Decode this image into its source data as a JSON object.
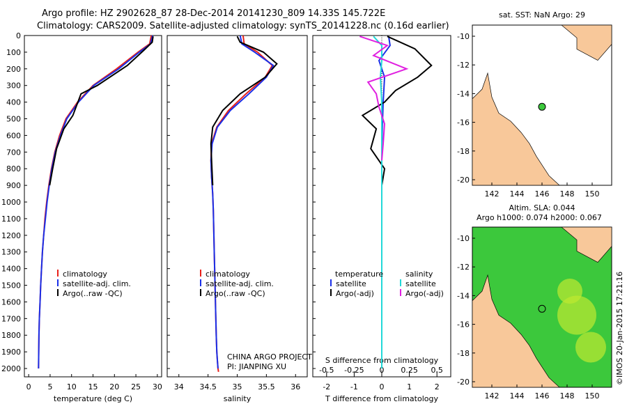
{
  "title_line1": "Argo profile: HZ 2902628_87 28-Dec-2014 20141230_809 14.33S 145.722E",
  "title_line2": "Climatology: CARS2009. Satellite-adjusted climatology: synTS_20141228.nc (0.16d earlier)",
  "colors": {
    "climatology": "#e8201a",
    "satellite": "#1a2fe8",
    "argo": "#000000",
    "satellite_s": "#22d8d8",
    "argo_s": "#e020e0",
    "land": "#f8c89a",
    "sea_green": "#3cc83c"
  },
  "chart_data": [
    {
      "type": "line",
      "id": "temperature",
      "xlabel": "temperature (deg C)",
      "ylabel": "",
      "xlim": [
        -1,
        31
      ],
      "ylim": [
        2050,
        0
      ],
      "xticks": [
        "0",
        "5",
        "10",
        "15",
        "20",
        "25",
        "30"
      ],
      "yticks": [
        "0",
        "100",
        "200",
        "300",
        "400",
        "500",
        "600",
        "700",
        "800",
        "900",
        "1000",
        "1100",
        "1200",
        "1300",
        "1400",
        "1500",
        "1600",
        "1700",
        "1800",
        "1900",
        "2000"
      ],
      "legend": [
        "climatology",
        "satellite-adj. clim.",
        "Argo(..raw -QC)"
      ],
      "series": [
        {
          "name": "climatology",
          "color": "#e8201a",
          "x": [
            28.6,
            28.2,
            25.5,
            20.5,
            15.0,
            11.4,
            8.7,
            7.2,
            6.1,
            5.3,
            4.7,
            4.2,
            3.8,
            3.5,
            3.2,
            3.0,
            2.8,
            2.65,
            2.5,
            2.4,
            2.35,
            2.3
          ],
          "y": [
            0,
            50,
            100,
            200,
            300,
            400,
            500,
            600,
            700,
            800,
            900,
            1000,
            1100,
            1200,
            1300,
            1400,
            1500,
            1600,
            1700,
            1800,
            1900,
            2000
          ]
        },
        {
          "name": "satellite-adj. clim.",
          "color": "#1a2fe8",
          "x": [
            28.9,
            28.4,
            25.8,
            21.0,
            15.2,
            11.6,
            8.9,
            7.4,
            6.2,
            5.4,
            4.8,
            4.3,
            3.9,
            3.5,
            3.2,
            3.0,
            2.8,
            2.65,
            2.5,
            2.4,
            2.35,
            2.3
          ],
          "y": [
            0,
            50,
            100,
            200,
            300,
            400,
            500,
            600,
            700,
            800,
            900,
            1000,
            1100,
            1200,
            1300,
            1400,
            1500,
            1600,
            1700,
            1800,
            1900,
            2000
          ]
        },
        {
          "name": "Argo(..raw -QC)",
          "color": "#000000",
          "x": [
            29.0,
            28.8,
            26.8,
            23.0,
            16.0,
            12.2,
            10.3,
            8.2,
            6.5,
            5.6,
            4.9
          ],
          "y": [
            5,
            40,
            90,
            180,
            300,
            350,
            480,
            560,
            680,
            800,
            900
          ]
        }
      ]
    },
    {
      "type": "line",
      "id": "salinity",
      "xlabel": "salinity",
      "xlim": [
        33.8,
        36.2
      ],
      "ylim": [
        2050,
        0
      ],
      "xticks": [
        "34",
        "34.5",
        "35",
        "35.5",
        "36"
      ],
      "legend": [
        "climatology",
        "satellite-adj. clim.",
        "Argo(..raw -QC)"
      ],
      "series": [
        {
          "name": "climatology",
          "color": "#e8201a",
          "x": [
            35.1,
            35.12,
            35.35,
            35.6,
            35.48,
            35.15,
            34.85,
            34.65,
            34.56,
            34.55,
            34.56,
            34.58,
            34.59,
            34.6,
            34.61,
            34.62,
            34.63,
            34.64,
            34.65,
            34.66,
            34.67,
            34.68
          ],
          "y": [
            0,
            50,
            100,
            180,
            250,
            350,
            450,
            550,
            650,
            750,
            850,
            950,
            1050,
            1200,
            1350,
            1500,
            1650,
            1800,
            1900,
            1950,
            2000,
            2020
          ]
        },
        {
          "name": "satellite-adj. clim.",
          "color": "#1a2fe8",
          "x": [
            35.05,
            35.08,
            35.3,
            35.62,
            35.5,
            35.2,
            34.88,
            34.66,
            34.57,
            34.55,
            34.56,
            34.58,
            34.59,
            34.6,
            34.61,
            34.62,
            34.63,
            34.64,
            34.65,
            34.66,
            34.67
          ],
          "y": [
            0,
            50,
            100,
            180,
            250,
            350,
            450,
            550,
            650,
            750,
            850,
            950,
            1050,
            1200,
            1350,
            1500,
            1650,
            1800,
            1900,
            1950,
            2000
          ]
        },
        {
          "name": "Argo(..raw -QC)",
          "color": "#000000",
          "x": [
            35.0,
            35.05,
            35.45,
            35.68,
            35.48,
            35.05,
            34.75,
            34.58,
            34.55,
            34.56,
            34.58
          ],
          "y": [
            5,
            40,
            100,
            170,
            250,
            350,
            450,
            550,
            650,
            750,
            900
          ]
        }
      ]
    },
    {
      "type": "line",
      "id": "differences",
      "xlabel": "T difference from climatology",
      "xlabel2": "S difference from climatology",
      "xlim": [
        -2.5,
        2.5
      ],
      "ylim": [
        2050,
        0
      ],
      "xticks": [
        "-2",
        "-1",
        "0",
        "1",
        "2"
      ],
      "xticks2": [
        "-0.5",
        "-0.25",
        "0",
        "0.25",
        "0.5"
      ],
      "legend_temperature": [
        "temperature",
        "satellite",
        "Argo(-adj)"
      ],
      "legend_salinity": [
        "salinity",
        "satellite",
        "Argo(-adj)"
      ],
      "series": [
        {
          "name": "satellite",
          "color": "#1a2fe8",
          "x": [
            0.25,
            0.3,
            -0.1,
            0.1,
            0.05,
            0.02,
            0,
            0,
            0,
            0
          ],
          "y": [
            5,
            60,
            150,
            250,
            400,
            550,
            700,
            900,
            1500,
            2000
          ]
        },
        {
          "name": "Argo(-adj)",
          "color": "#000000",
          "x": [
            0.2,
            1.2,
            1.8,
            1.3,
            0.5,
            0.1,
            -0.7,
            -0.2,
            -0.4,
            0.1,
            0,
            0
          ],
          "y": [
            5,
            80,
            180,
            250,
            330,
            400,
            480,
            560,
            680,
            800,
            900,
            920
          ]
        },
        {
          "name": "satellite",
          "color": "#22d8d8",
          "x": [
            -0.3,
            0,
            0,
            -0.05,
            0,
            0,
            0,
            0,
            0,
            0
          ],
          "y": [
            5,
            60,
            150,
            250,
            400,
            550,
            700,
            900,
            1500,
            2000
          ]
        },
        {
          "name": "Argo(-adj)",
          "color": "#e020e0",
          "x": [
            -0.8,
            0.2,
            -0.3,
            0.9,
            -0.5,
            -0.2,
            -0.1,
            0.1,
            0.05,
            0
          ],
          "y": [
            5,
            60,
            120,
            200,
            280,
            350,
            430,
            530,
            650,
            750
          ]
        }
      ]
    },
    {
      "type": "heatmap",
      "id": "sst-map",
      "title": "sat. SST: NaN Argo: 29",
      "xticks": [
        "142",
        "144",
        "146",
        "148",
        "150"
      ],
      "yticks": [
        "-10",
        "-12",
        "-14",
        "-16",
        "-18",
        "-20"
      ]
    },
    {
      "type": "heatmap",
      "id": "sla-map",
      "title": "Altim. SLA: 0.044",
      "title2": "Argo h1000: 0.074 h2000: 0.067",
      "xticks": [
        "142",
        "144",
        "146",
        "148",
        "150"
      ],
      "yticks": [
        "-10",
        "-12",
        "-14",
        "-16",
        "-18",
        "-20"
      ]
    }
  ],
  "annotations": {
    "project": "CHINA ARGO PROJECT",
    "pi": "PI: JIANPING XU",
    "credit": "©IMOS 20-Jan-2015 17:21:16"
  }
}
